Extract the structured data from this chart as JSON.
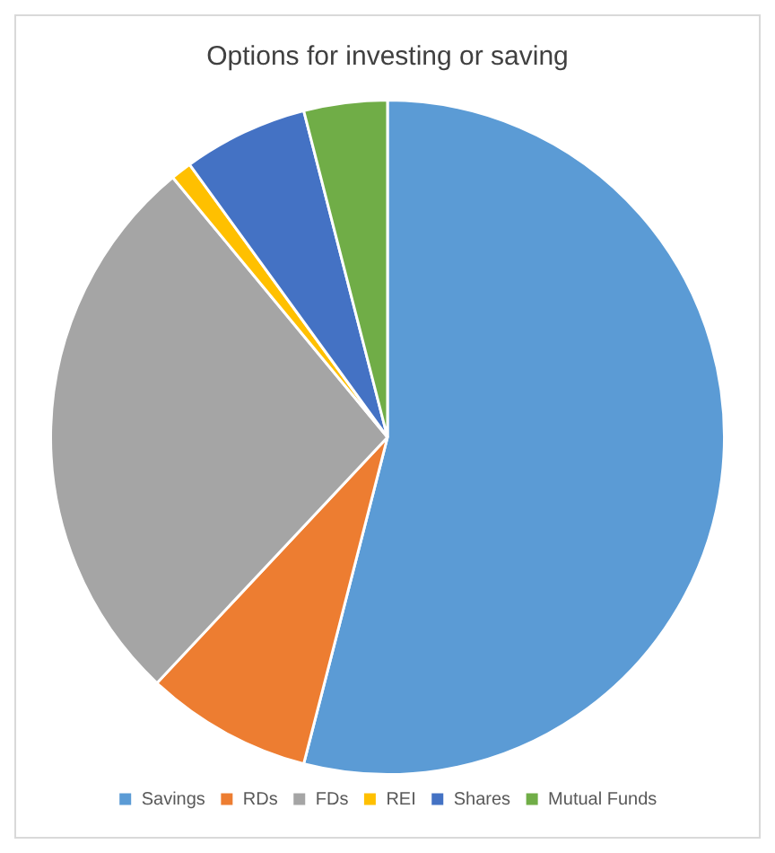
{
  "chart_data": {
    "type": "pie",
    "title": "Options for investing or saving",
    "categories": [
      "Savings",
      "RDs",
      "FDs",
      "REI",
      "Shares",
      "Mutual Funds"
    ],
    "values": [
      54,
      8,
      27,
      1,
      6,
      4
    ],
    "colors": [
      "#5b9bd5",
      "#ed7d31",
      "#a5a5a5",
      "#ffc000",
      "#4472c4",
      "#70ad47"
    ],
    "legend": "bottom"
  }
}
